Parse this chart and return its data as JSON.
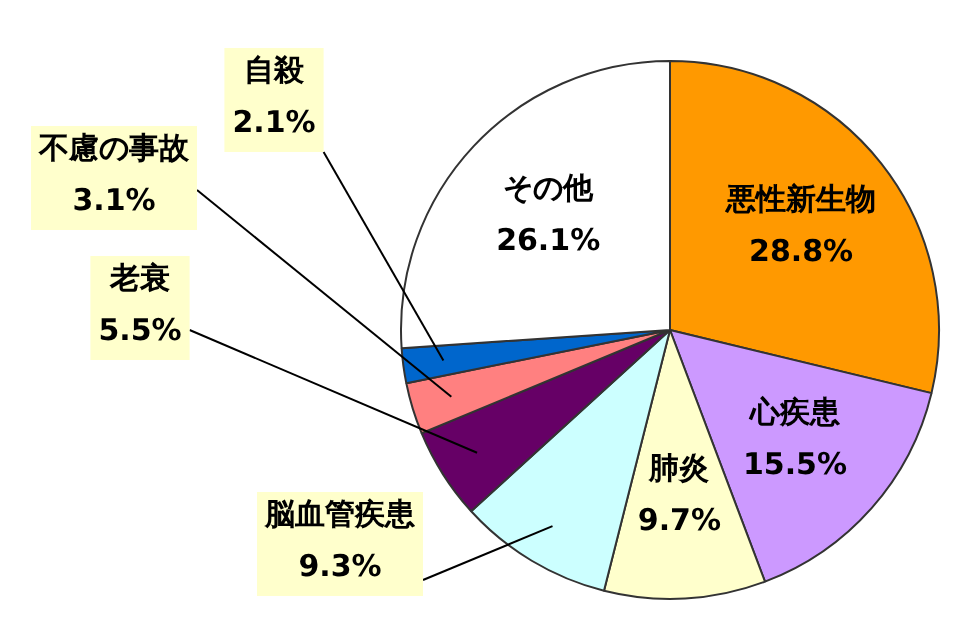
{
  "chart_data": {
    "type": "pie",
    "categories": [
      "悪性新生物",
      "心疾患",
      "肺炎",
      "脳血管疾患",
      "老衰",
      "不慮の事故",
      "自殺",
      "その他"
    ],
    "values": [
      28.8,
      15.5,
      9.7,
      9.3,
      5.5,
      3.1,
      2.1,
      26.1
    ],
    "value_labels": [
      "28.8%",
      "15.5%",
      "9.7%",
      "9.3%",
      "5.5%",
      "3.1%",
      "2.1%",
      "26.1%"
    ],
    "colors": [
      "#ff9900",
      "#cc99ff",
      "#ffffcc",
      "#ccffff",
      "#660066",
      "#ff8080",
      "#0066cc",
      "#ffffff"
    ],
    "legend": false
  }
}
